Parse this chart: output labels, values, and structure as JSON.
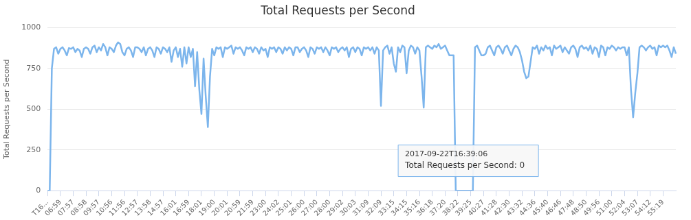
{
  "chart_data": {
    "type": "line",
    "title": "Total Requests per Second",
    "ylabel": "Total Requests per Second",
    "categories": [
      "T16…",
      null,
      null,
      null,
      null,
      null,
      "06:59",
      null,
      null,
      null,
      null,
      null,
      "07:57",
      null,
      null,
      null,
      null,
      null,
      "08:58",
      null,
      null,
      null,
      null,
      null,
      "09:57",
      null,
      null,
      null,
      null,
      null,
      "10:56",
      null,
      null,
      null,
      null,
      null,
      "11:56",
      null,
      null,
      null,
      null,
      null,
      "12:57",
      null,
      null,
      null,
      null,
      null,
      "13:58",
      null,
      null,
      null,
      null,
      null,
      "14:57",
      null,
      null,
      null,
      null,
      null,
      "16:01",
      null,
      null,
      null,
      null,
      null,
      "16:59",
      null,
      null,
      null,
      null,
      null,
      "18:01",
      null,
      null,
      null,
      null,
      null,
      "19:00",
      null,
      null,
      null,
      null,
      null,
      "20:01",
      null,
      null,
      null,
      null,
      null,
      "20:59",
      null,
      null,
      null,
      null,
      null,
      "21:59",
      null,
      null,
      null,
      null,
      null,
      "23:00",
      null,
      null,
      null,
      null,
      null,
      "24:02",
      null,
      null,
      null,
      null,
      null,
      "25:01",
      null,
      null,
      null,
      null,
      null,
      "26:00",
      null,
      null,
      null,
      null,
      null,
      "27:00",
      null,
      null,
      null,
      null,
      null,
      "28:00",
      null,
      null,
      null,
      null,
      null,
      "29:02",
      null,
      null,
      null,
      null,
      null,
      "30:03",
      null,
      null,
      null,
      null,
      null,
      "31:09",
      null,
      null,
      null,
      null,
      null,
      "32:09",
      null,
      null,
      null,
      null,
      null,
      "33:15",
      null,
      null,
      null,
      null,
      null,
      "34:15",
      null,
      null,
      null,
      null,
      null,
      "35:16",
      null,
      null,
      null,
      null,
      null,
      "36:18",
      null,
      null,
      null,
      null,
      null,
      "37:20",
      null,
      null,
      null,
      null,
      null,
      "38:22",
      null,
      null,
      null,
      null,
      null,
      "39:25",
      null,
      null,
      null,
      null,
      null,
      "40:27",
      null,
      null,
      null,
      null,
      null,
      "41:28",
      null,
      null,
      null,
      null,
      null,
      "42:30",
      null,
      null,
      null,
      null,
      null,
      "43:32",
      null,
      null,
      null,
      null,
      null,
      "44:36",
      null,
      null,
      null,
      null,
      null,
      "45:40",
      null,
      null,
      null,
      null,
      null,
      "46:46",
      null,
      null,
      null,
      null,
      null,
      "47:48",
      null,
      null,
      null,
      null,
      null,
      "48:50",
      null,
      null,
      null,
      null,
      null,
      "49:56",
      null,
      null,
      null,
      null,
      null,
      "51:00",
      null,
      null,
      null,
      null,
      null,
      "52:04",
      null,
      null,
      null,
      null,
      null,
      "53:07",
      null,
      null,
      null,
      null,
      null,
      "54:12",
      null,
      null,
      null,
      null,
      null,
      "55:19",
      null,
      null,
      null,
      null,
      null,
      null
    ],
    "series": [
      {
        "color": "#7cb5ec",
        "values": [
          0,
          0,
          750,
          870,
          880,
          840,
          870,
          880,
          860,
          830,
          875,
          870,
          880,
          850,
          870,
          860,
          820,
          870,
          880,
          870,
          840,
          880,
          890,
          850,
          880,
          860,
          900,
          880,
          830,
          880,
          870,
          850,
          890,
          910,
          900,
          850,
          830,
          870,
          880,
          860,
          820,
          880,
          880,
          870,
          850,
          880,
          830,
          870,
          880,
          860,
          820,
          880,
          870,
          840,
          880,
          870,
          850,
          880,
          790,
          860,
          880,
          820,
          870,
          760,
          880,
          780,
          880,
          820,
          870,
          640,
          850,
          620,
          470,
          810,
          580,
          390,
          700,
          870,
          830,
          880,
          870,
          880,
          820,
          880,
          870,
          880,
          890,
          840,
          880,
          870,
          880,
          860,
          830,
          880,
          870,
          880,
          850,
          880,
          870,
          840,
          880,
          860,
          870,
          820,
          880,
          870,
          880,
          850,
          880,
          870,
          840,
          880,
          860,
          880,
          870,
          830,
          880,
          880,
          850,
          870,
          880,
          860,
          820,
          880,
          870,
          840,
          880,
          870,
          880,
          850,
          880,
          860,
          830,
          880,
          870,
          880,
          850,
          870,
          880,
          860,
          880,
          820,
          870,
          880,
          850,
          880,
          870,
          830,
          880,
          870,
          880,
          860,
          880,
          840,
          880,
          860,
          520,
          860,
          880,
          890,
          840,
          880,
          780,
          730,
          880,
          850,
          890,
          880,
          720,
          860,
          890,
          880,
          840,
          880,
          860,
          700,
          510,
          880,
          890,
          880,
          870,
          890,
          880,
          900,
          870,
          880,
          890,
          860,
          830,
          830,
          830,
          0,
          0,
          0,
          0,
          0,
          0,
          0,
          0,
          0,
          880,
          890,
          860,
          830,
          830,
          840,
          880,
          890,
          860,
          830,
          880,
          890,
          870,
          840,
          880,
          890,
          860,
          830,
          870,
          890,
          880,
          850,
          800,
          730,
          690,
          700,
          790,
          880,
          870,
          890,
          840,
          880,
          860,
          890,
          870,
          880,
          830,
          890,
          870,
          880,
          890,
          850,
          880,
          860,
          840,
          880,
          890,
          870,
          820,
          880,
          890,
          870,
          880,
          860,
          890,
          840,
          880,
          870,
          820,
          890,
          880,
          830,
          880,
          870,
          890,
          880,
          860,
          880,
          870,
          880,
          880,
          830,
          880,
          620,
          450,
          600,
          720,
          880,
          890,
          880,
          860,
          880,
          890,
          870,
          880,
          830,
          890,
          880,
          890,
          880,
          890,
          860,
          820,
          880,
          840
        ]
      }
    ],
    "ylim": [
      0,
      1000
    ],
    "yticks": [
      0,
      250,
      500,
      750,
      1000
    ],
    "grid": "y",
    "annotations": [
      "2017-09-22T16:39:06",
      "Total Requests per Second: 0"
    ]
  }
}
